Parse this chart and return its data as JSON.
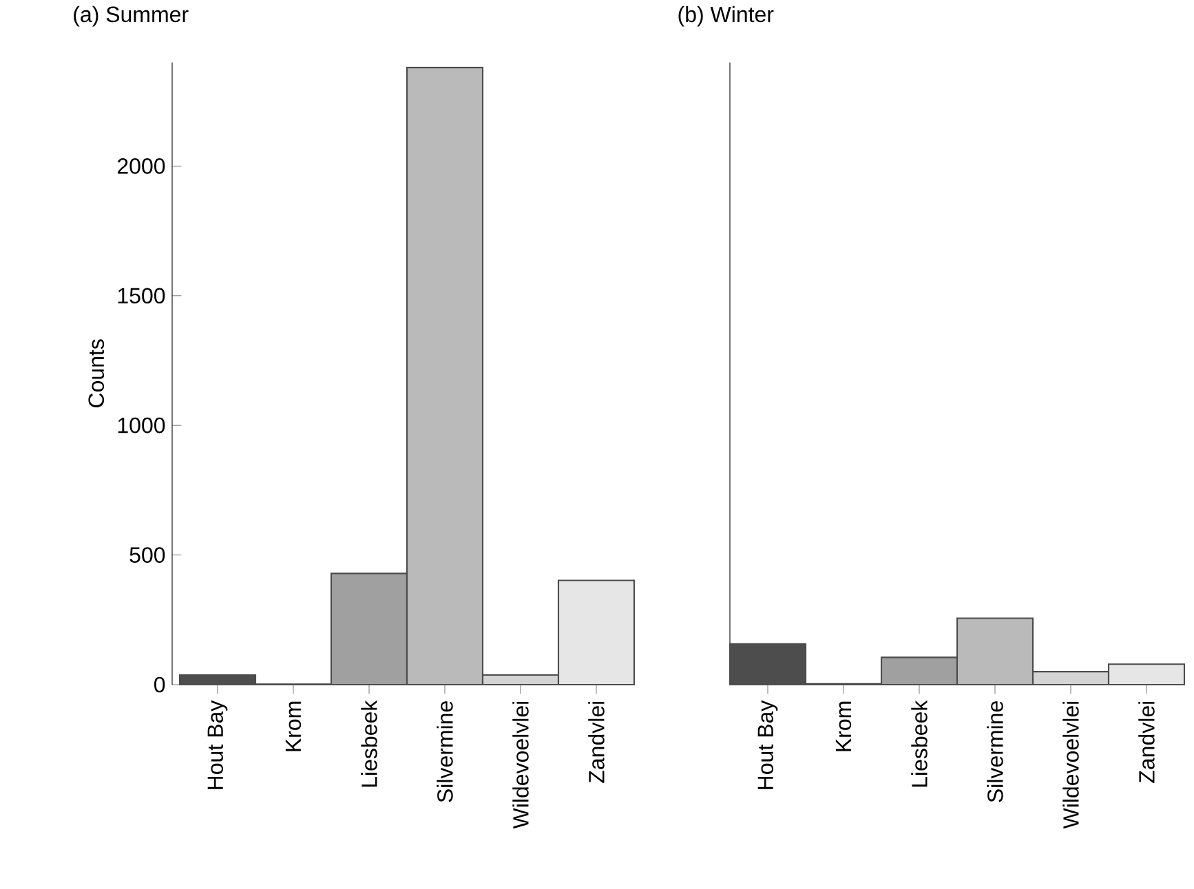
{
  "chart_data": [
    {
      "type": "bar",
      "title": "(a) Summer",
      "ylabel": "Counts",
      "categories": [
        "Hout Bay",
        "Krom",
        "Liesbeek",
        "Silvermine",
        "Wildevoelvlei",
        "Zandvlei"
      ],
      "values": [
        37,
        2,
        429,
        2380,
        37,
        402
      ],
      "colors": [
        "#4d4d4d",
        "#ffffff",
        "#a0a0a0",
        "#bababa",
        "#d4d4d4",
        "#e6e6e6"
      ],
      "ylim": [
        0,
        2400
      ],
      "yticks": [
        0,
        500,
        1000,
        1500,
        2000
      ]
    },
    {
      "type": "bar",
      "title": "(b) Winter",
      "categories": [
        "Hout Bay",
        "Krom",
        "Liesbeek",
        "Silvermine",
        "Wildevoelvlei",
        "Zandvlei"
      ],
      "values": [
        157,
        3,
        105,
        256,
        50,
        79
      ],
      "colors": [
        "#4d4d4d",
        "#ffffff",
        "#a0a0a0",
        "#bababa",
        "#d4d4d4",
        "#e6e6e6"
      ],
      "ylim": [
        0,
        2400
      ],
      "tick_labels": "x"
    }
  ]
}
